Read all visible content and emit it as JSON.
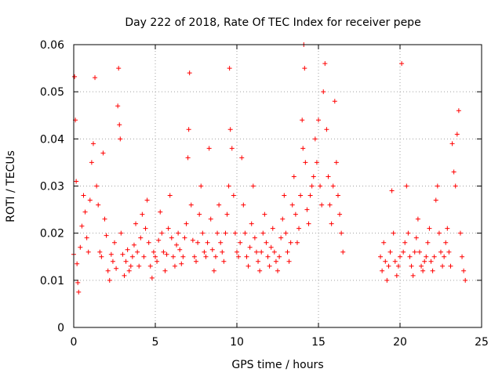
{
  "chart_data": {
    "type": "scatter",
    "title": "Day 222 of 2018, Rate Of TEC Index for receiver pepe",
    "xlabel": "GPS time / hours",
    "ylabel": "ROTI / TECUs",
    "xlim": [
      0,
      25
    ],
    "ylim": [
      0,
      0.06
    ],
    "xticks": [
      0,
      5,
      10,
      15,
      20,
      25
    ],
    "yticks": [
      0,
      0.01,
      0.02,
      0.03,
      0.04,
      0.05,
      0.06
    ],
    "xtick_labels": [
      "0",
      "5",
      "10",
      "15",
      "20",
      "25"
    ],
    "ytick_labels": [
      "0",
      "0.01",
      "0.02",
      "0.03",
      "0.04",
      "0.05",
      "0.06"
    ],
    "grid": true,
    "marker": "plus",
    "color": "#ff0000",
    "series": [
      {
        "x": [
          0.0,
          0.05,
          0.1,
          0.15,
          0.2,
          0.25,
          0.3,
          0.4,
          0.5,
          0.6,
          0.7,
          0.8,
          0.9,
          1.0,
          1.1,
          1.2,
          1.3,
          1.4,
          1.5,
          1.6,
          1.7,
          1.8,
          1.9,
          2.0,
          2.1,
          2.2,
          2.3,
          2.4,
          2.5,
          2.6,
          2.7,
          2.75,
          2.8,
          2.85,
          2.9,
          3.0,
          3.1,
          3.2,
          3.3,
          3.4,
          3.5,
          3.6,
          3.7,
          3.8,
          3.9,
          4.0,
          4.1,
          4.2,
          4.3,
          4.4,
          4.5,
          4.6,
          4.7,
          4.8,
          4.9,
          5.0,
          5.1,
          5.2,
          5.3,
          5.4,
          5.5,
          5.6,
          5.7,
          5.8,
          5.9,
          6.0,
          6.1,
          6.2,
          6.3,
          6.4,
          6.5,
          6.6,
          6.7,
          6.8,
          6.9,
          7.0,
          7.05,
          7.1,
          7.2,
          7.3,
          7.4,
          7.5,
          7.6,
          7.7,
          7.8,
          7.9,
          8.0,
          8.1,
          8.2,
          8.3,
          8.4,
          8.5,
          8.6,
          8.7,
          8.8,
          8.9,
          9.0,
          9.1,
          9.2,
          9.3,
          9.4,
          9.5,
          9.55,
          9.6,
          9.7,
          9.8,
          9.9,
          10.0,
          10.1,
          10.2,
          10.3,
          10.4,
          10.5,
          10.6,
          10.7,
          10.8,
          10.9,
          11.0,
          11.1,
          11.2,
          11.3,
          11.4,
          11.5,
          11.6,
          11.7,
          11.8,
          11.9,
          12.0,
          12.1,
          12.2,
          12.3,
          12.4,
          12.5,
          12.6,
          12.7,
          12.8,
          12.9,
          13.0,
          13.1,
          13.2,
          13.3,
          13.4,
          13.5,
          13.6,
          13.7,
          13.8,
          13.9,
          14.0,
          14.05,
          14.1,
          14.15,
          14.2,
          14.3,
          14.4,
          14.5,
          14.6,
          14.7,
          14.8,
          14.9,
          15.0,
          15.1,
          15.2,
          15.3,
          15.4,
          15.5,
          15.6,
          15.7,
          15.8,
          15.9,
          16.0,
          16.1,
          16.2,
          16.3,
          16.4,
          16.5,
          18.8,
          18.9,
          19.0,
          19.1,
          19.2,
          19.3,
          19.4,
          19.5,
          19.6,
          19.7,
          19.8,
          19.9,
          20.0,
          20.1,
          20.2,
          20.3,
          20.4,
          20.5,
          20.6,
          20.7,
          20.8,
          20.9,
          21.0,
          21.1,
          21.2,
          21.3,
          21.4,
          21.5,
          21.6,
          21.7,
          21.8,
          21.9,
          22.0,
          22.1,
          22.2,
          22.3,
          22.4,
          22.5,
          22.6,
          22.7,
          22.8,
          22.9,
          23.0,
          23.1,
          23.2,
          23.3,
          23.4,
          23.5,
          23.6,
          23.7,
          23.8,
          23.9,
          24.0
        ],
        "y": [
          0.0155,
          0.0532,
          0.044,
          0.031,
          0.0135,
          0.0095,
          0.0075,
          0.017,
          0.0215,
          0.028,
          0.0245,
          0.019,
          0.016,
          0.027,
          0.035,
          0.039,
          0.053,
          0.03,
          0.026,
          0.016,
          0.015,
          0.037,
          0.023,
          0.0195,
          0.012,
          0.01,
          0.0155,
          0.014,
          0.018,
          0.0125,
          0.047,
          0.055,
          0.043,
          0.04,
          0.02,
          0.0155,
          0.011,
          0.014,
          0.0165,
          0.012,
          0.013,
          0.015,
          0.0175,
          0.022,
          0.016,
          0.013,
          0.019,
          0.024,
          0.015,
          0.021,
          0.027,
          0.018,
          0.013,
          0.0105,
          0.016,
          0.015,
          0.014,
          0.0185,
          0.0245,
          0.02,
          0.016,
          0.012,
          0.0155,
          0.021,
          0.028,
          0.019,
          0.015,
          0.013,
          0.0175,
          0.02,
          0.0165,
          0.0135,
          0.015,
          0.019,
          0.022,
          0.036,
          0.042,
          0.054,
          0.026,
          0.0185,
          0.015,
          0.014,
          0.018,
          0.024,
          0.03,
          0.02,
          0.016,
          0.015,
          0.018,
          0.038,
          0.023,
          0.0165,
          0.012,
          0.015,
          0.02,
          0.026,
          0.018,
          0.016,
          0.014,
          0.02,
          0.024,
          0.03,
          0.055,
          0.042,
          0.038,
          0.028,
          0.02,
          0.016,
          0.015,
          0.018,
          0.036,
          0.026,
          0.02,
          0.015,
          0.013,
          0.017,
          0.022,
          0.03,
          0.019,
          0.016,
          0.014,
          0.012,
          0.016,
          0.02,
          0.024,
          0.018,
          0.015,
          0.013,
          0.017,
          0.021,
          0.016,
          0.014,
          0.012,
          0.015,
          0.019,
          0.023,
          0.028,
          0.02,
          0.016,
          0.014,
          0.018,
          0.026,
          0.032,
          0.024,
          0.018,
          0.021,
          0.028,
          0.044,
          0.038,
          0.06,
          0.055,
          0.035,
          0.025,
          0.022,
          0.028,
          0.03,
          0.032,
          0.04,
          0.035,
          0.044,
          0.03,
          0.026,
          0.05,
          0.056,
          0.042,
          0.032,
          0.026,
          0.022,
          0.03,
          0.048,
          0.035,
          0.028,
          0.024,
          0.02,
          0.016,
          0.015,
          0.012,
          0.018,
          0.014,
          0.01,
          0.013,
          0.016,
          0.029,
          0.02,
          0.014,
          0.011,
          0.013,
          0.015,
          0.056,
          0.016,
          0.018,
          0.03,
          0.02,
          0.015,
          0.013,
          0.011,
          0.016,
          0.019,
          0.023,
          0.016,
          0.013,
          0.012,
          0.014,
          0.015,
          0.018,
          0.021,
          0.014,
          0.012,
          0.015,
          0.027,
          0.03,
          0.02,
          0.016,
          0.013,
          0.015,
          0.018,
          0.021,
          0.016,
          0.013,
          0.039,
          0.033,
          0.03,
          0.041,
          0.046,
          0.02,
          0.015,
          0.012,
          0.01
        ]
      }
    ]
  }
}
